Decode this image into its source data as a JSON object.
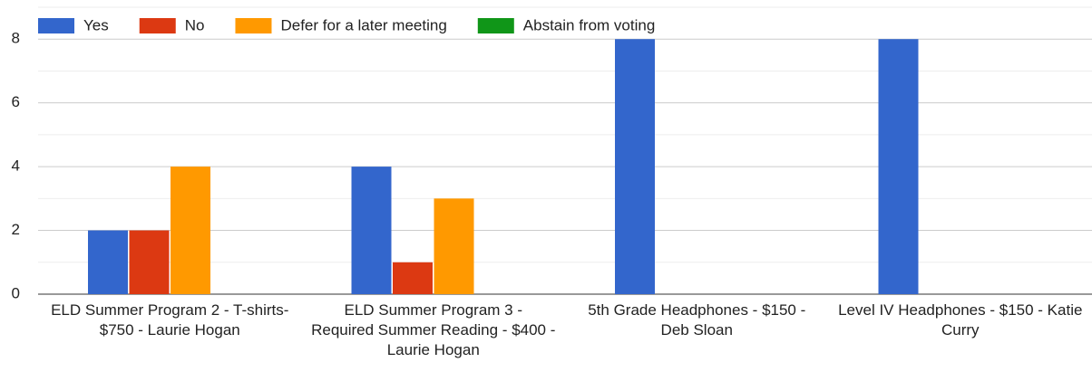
{
  "chart_data": {
    "type": "bar",
    "categories": [
      "ELD Summer Program 2 - T-shirts- $750 - Laurie Hogan",
      "ELD Summer Program 3 - Required Summer Reading - $400 - Laurie Hogan",
      "5th Grade Headphones - $150 - Deb Sloan",
      "Level IV Headphones - $150 - Katie Curry"
    ],
    "series": [
      {
        "name": "Yes",
        "color": "#3366cc",
        "values": [
          2,
          4,
          8,
          8
        ]
      },
      {
        "name": "No",
        "color": "#dc3912",
        "values": [
          2,
          1,
          0,
          0
        ]
      },
      {
        "name": "Defer for a later meeting",
        "color": "#ff9900",
        "values": [
          4,
          3,
          0,
          0
        ]
      },
      {
        "name": "Abstain from voting",
        "color": "#109618",
        "values": [
          0,
          0,
          0,
          0
        ]
      }
    ],
    "ylim": [
      0,
      9
    ],
    "yticks": [
      0,
      2,
      4,
      6,
      8
    ],
    "grid": true,
    "legend": "top"
  }
}
